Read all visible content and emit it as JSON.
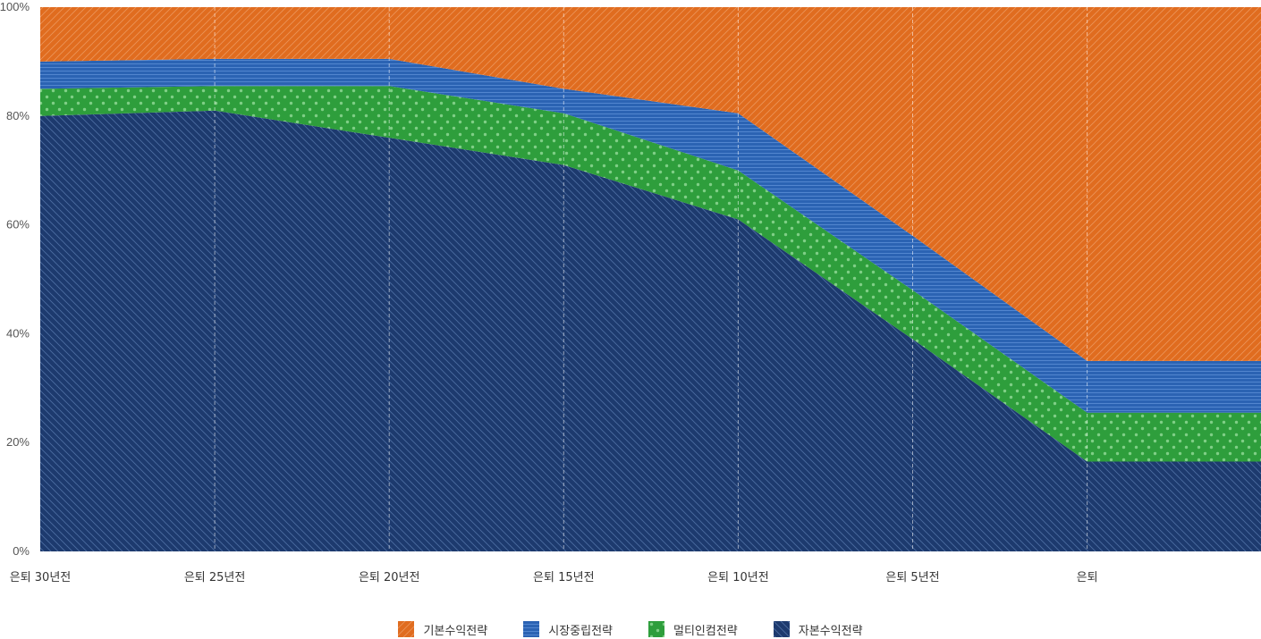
{
  "chart_data": {
    "type": "area",
    "stacked": true,
    "title": "",
    "xlabel": "",
    "ylabel": "",
    "ylim": [
      0,
      100
    ],
    "y_ticks": [
      "0%",
      "20%",
      "40%",
      "60%",
      "80%",
      "100%"
    ],
    "categories": [
      "은퇴 30년전",
      "은퇴 25년전",
      "은퇴 20년전",
      "은퇴 15년전",
      "은퇴 10년전",
      "은퇴 5년전",
      "은퇴",
      ""
    ],
    "series": [
      {
        "name": "자본수익전략",
        "color": "#1d3a6e",
        "pattern": "hatch-back",
        "values": [
          80,
          81,
          76,
          71,
          61,
          39,
          16.5,
          16.5
        ]
      },
      {
        "name": "멀티인컴전략",
        "color": "#2e9e3c",
        "pattern": "dots",
        "values": [
          5,
          4.5,
          9.5,
          9.5,
          9,
          9,
          9,
          9
        ]
      },
      {
        "name": "시장중립전략",
        "color": "#2b63b3",
        "pattern": "hlines",
        "values": [
          5,
          5,
          5,
          4.5,
          10.5,
          10,
          9.5,
          9.5
        ]
      },
      {
        "name": "기본수익전략",
        "color": "#e06c1f",
        "pattern": "hatch-fwd",
        "values": [
          10,
          9.5,
          9.5,
          15,
          19.5,
          42,
          65,
          65
        ]
      }
    ],
    "legend": {
      "position": "bottom",
      "order": [
        "기본수익전략",
        "시장중립전략",
        "멀티인컴전략",
        "자본수익전략"
      ]
    },
    "grid": "vertical-dashed"
  }
}
